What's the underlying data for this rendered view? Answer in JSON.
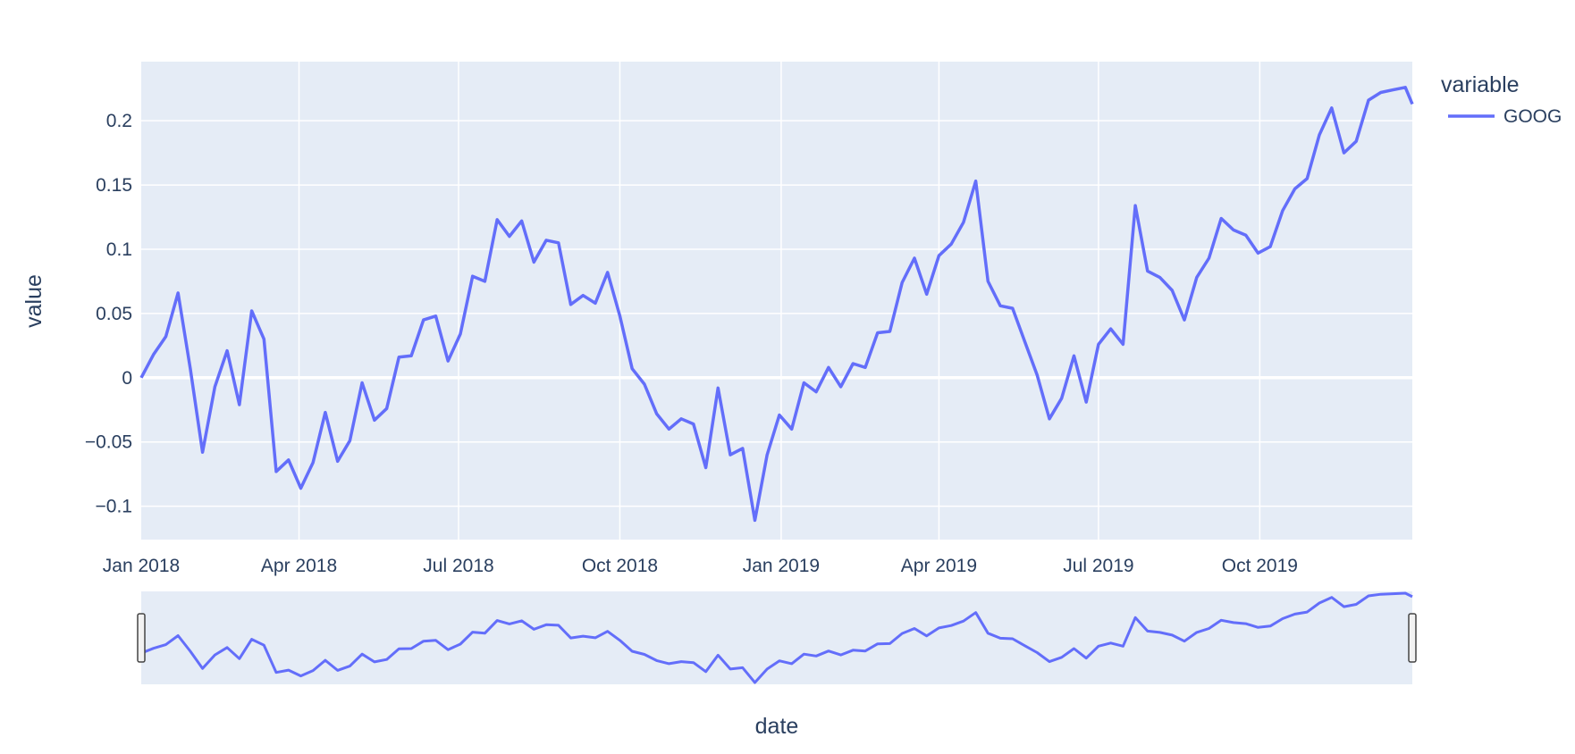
{
  "chart_data": {
    "type": "line",
    "xlabel": "date",
    "ylabel": "value",
    "x_range": [
      "2018-01-01",
      "2019-12-27"
    ],
    "ylim": [
      -0.126,
      0.246
    ],
    "grid": true,
    "legend": {
      "title": "variable",
      "placement": "top-right"
    },
    "x_tick_labels": [
      {
        "date": "2018-01-01",
        "label": "Jan 2018"
      },
      {
        "date": "2018-04-01",
        "label": "Apr 2018"
      },
      {
        "date": "2018-07-01",
        "label": "Jul 2018"
      },
      {
        "date": "2018-10-01",
        "label": "Oct 2018"
      },
      {
        "date": "2019-01-01",
        "label": "Jan 2019"
      },
      {
        "date": "2019-04-01",
        "label": "Apr 2019"
      },
      {
        "date": "2019-07-01",
        "label": "Jul 2019"
      },
      {
        "date": "2019-10-01",
        "label": "Oct 2019"
      }
    ],
    "y_ticks": [
      {
        "value": -0.1,
        "label": "−0.1"
      },
      {
        "value": -0.05,
        "label": "−0.05"
      },
      {
        "value": 0,
        "label": "0"
      },
      {
        "value": 0.05,
        "label": "0.05"
      },
      {
        "value": 0.1,
        "label": "0.1"
      },
      {
        "value": 0.15,
        "label": "0.15"
      },
      {
        "value": 0.2,
        "label": "0.2"
      }
    ],
    "rangeslider": true,
    "series": [
      {
        "name": "GOOG",
        "color": "#636efa",
        "x": [
          "2018-01-01",
          "2018-01-08",
          "2018-01-15",
          "2018-01-22",
          "2018-01-29",
          "2018-02-05",
          "2018-02-12",
          "2018-02-19",
          "2018-02-26",
          "2018-03-05",
          "2018-03-12",
          "2018-03-19",
          "2018-03-26",
          "2018-04-02",
          "2018-04-09",
          "2018-04-16",
          "2018-04-23",
          "2018-04-30",
          "2018-05-07",
          "2018-05-14",
          "2018-05-21",
          "2018-05-28",
          "2018-06-04",
          "2018-06-11",
          "2018-06-18",
          "2018-06-25",
          "2018-07-02",
          "2018-07-09",
          "2018-07-16",
          "2018-07-23",
          "2018-07-30",
          "2018-08-06",
          "2018-08-13",
          "2018-08-20",
          "2018-08-27",
          "2018-09-03",
          "2018-09-10",
          "2018-09-17",
          "2018-09-24",
          "2018-10-01",
          "2018-10-08",
          "2018-10-15",
          "2018-10-22",
          "2018-10-29",
          "2018-11-05",
          "2018-11-12",
          "2018-11-19",
          "2018-11-26",
          "2018-12-03",
          "2018-12-10",
          "2018-12-17",
          "2018-12-24",
          "2018-12-31",
          "2019-01-07",
          "2019-01-14",
          "2019-01-21",
          "2019-01-28",
          "2019-02-04",
          "2019-02-11",
          "2019-02-18",
          "2019-02-25",
          "2019-03-04",
          "2019-03-11",
          "2019-03-18",
          "2019-03-25",
          "2019-04-01",
          "2019-04-08",
          "2019-04-15",
          "2019-04-22",
          "2019-04-29",
          "2019-05-06",
          "2019-05-13",
          "2019-05-20",
          "2019-05-27",
          "2019-06-03",
          "2019-06-10",
          "2019-06-17",
          "2019-06-24",
          "2019-07-01",
          "2019-07-08",
          "2019-07-15",
          "2019-07-22",
          "2019-07-29",
          "2019-08-05",
          "2019-08-12",
          "2019-08-19",
          "2019-08-26",
          "2019-09-02",
          "2019-09-09",
          "2019-09-16",
          "2019-09-23",
          "2019-09-30",
          "2019-10-07",
          "2019-10-14",
          "2019-10-21",
          "2019-10-28",
          "2019-11-04",
          "2019-11-11",
          "2019-11-18",
          "2019-11-25",
          "2019-12-02",
          "2019-12-09",
          "2019-12-16",
          "2019-12-23",
          "2019-12-27"
        ],
        "values": [
          0.0,
          0.018,
          0.032,
          0.066,
          0.007,
          -0.058,
          -0.007,
          0.021,
          -0.021,
          0.052,
          0.03,
          -0.073,
          -0.064,
          -0.086,
          -0.066,
          -0.027,
          -0.065,
          -0.049,
          -0.004,
          -0.033,
          -0.024,
          0.016,
          0.017,
          0.045,
          0.048,
          0.013,
          0.034,
          0.079,
          0.075,
          0.123,
          0.11,
          0.122,
          0.09,
          0.107,
          0.105,
          0.057,
          0.064,
          0.058,
          0.082,
          0.048,
          0.007,
          -0.005,
          -0.028,
          -0.04,
          -0.032,
          -0.036,
          -0.07,
          -0.008,
          -0.06,
          -0.055,
          -0.111,
          -0.06,
          -0.029,
          -0.04,
          -0.004,
          -0.011,
          0.008,
          -0.007,
          0.011,
          0.008,
          0.035,
          0.036,
          0.074,
          0.093,
          0.065,
          0.095,
          0.104,
          0.121,
          0.153,
          0.075,
          0.056,
          0.054,
          0.028,
          0.002,
          -0.032,
          -0.016,
          0.017,
          -0.019,
          0.026,
          0.038,
          0.026,
          0.134,
          0.083,
          0.078,
          0.068,
          0.045,
          0.078,
          0.093,
          0.124,
          0.115,
          0.111,
          0.097,
          0.102,
          0.13,
          0.147,
          0.155,
          0.189,
          0.21,
          0.175,
          0.184,
          0.216,
          0.222,
          0.224,
          0.226,
          0.213
        ]
      }
    ]
  }
}
